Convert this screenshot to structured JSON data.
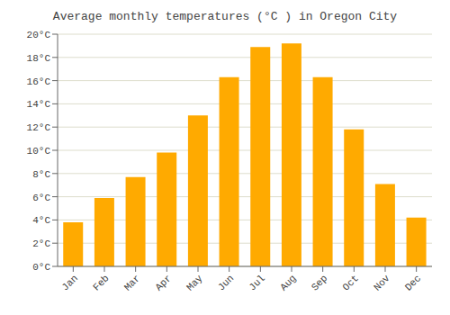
{
  "chart_data": {
    "type": "bar",
    "title": "Average monthly temperatures (°C ) in Oregon City",
    "categories": [
      "Jan",
      "Feb",
      "Mar",
      "Apr",
      "May",
      "Jun",
      "Jul",
      "Aug",
      "Sep",
      "Oct",
      "Nov",
      "Dec"
    ],
    "values": [
      3.8,
      5.9,
      7.7,
      9.8,
      13.0,
      16.3,
      18.9,
      19.2,
      16.3,
      11.8,
      7.1,
      4.2
    ],
    "color": "#FFAA00",
    "ylim": [
      0,
      20
    ],
    "yticks": [
      {
        "value": 0,
        "label": "0°C"
      },
      {
        "value": 2,
        "label": "2°C"
      },
      {
        "value": 4,
        "label": "4°C"
      },
      {
        "value": 6,
        "label": "6°C"
      },
      {
        "value": 8,
        "label": "8°C"
      },
      {
        "value": 10,
        "label": "10°C"
      },
      {
        "value": 12,
        "label": "12°C"
      },
      {
        "value": 14,
        "label": "14°C"
      },
      {
        "value": 16,
        "label": "16°C"
      },
      {
        "value": 18,
        "label": "18°C"
      },
      {
        "value": 20,
        "label": "20°C"
      }
    ],
    "grid": true
  }
}
